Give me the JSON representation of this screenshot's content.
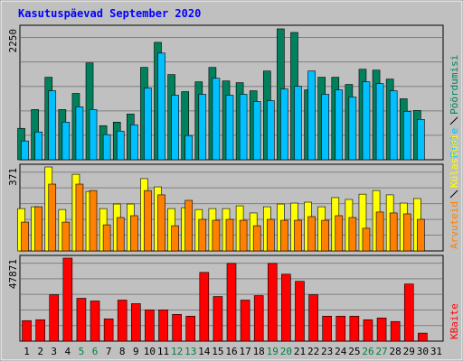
{
  "chart_data": [
    {
      "type": "bar",
      "title": "Kasutuspäevad September 2020",
      "categories": [
        "1",
        "2",
        "3",
        "4",
        "5",
        "6",
        "7",
        "8",
        "9",
        "10",
        "11",
        "12",
        "13",
        "14",
        "15",
        "16",
        "17",
        "18",
        "19",
        "20",
        "21",
        "22",
        "23",
        "24",
        "25",
        "26",
        "27",
        "28",
        "29",
        "30",
        "31"
      ],
      "weekends": [
        "5",
        "6",
        "12",
        "13",
        "19",
        "20",
        "26",
        "27"
      ],
      "weekend_color": "#008040",
      "ylim": [
        0,
        2250
      ],
      "yticks": [
        2250
      ],
      "series": [
        {
          "name": "Pöördumisi",
          "color": "#00805c",
          "values": [
            532,
            851,
            1399,
            851,
            1125,
            1642,
            578,
            638,
            775,
            1566,
            1991,
            1444,
            1155,
            1322,
            1566,
            1337,
            1307,
            1170,
            1505,
            2220,
            2159,
            1185,
            1399,
            1399,
            1277,
            1535,
            1520,
            1368,
            1034,
            836,
            null
          ]
        },
        {
          "name": "Faile",
          "color": "#00c0ff",
          "values": [
            319,
            471,
            1170,
            638,
            897,
            851,
            426,
            486,
            593,
            1216,
            1809,
            1094,
            410,
            1110,
            1383,
            1094,
            1110,
            988,
            1003,
            1201,
            1246,
            1505,
            1110,
            1185,
            1064,
            1322,
            1292,
            1170,
            821,
            684,
            null
          ]
        }
      ]
    },
    {
      "type": "bar",
      "ylim": [
        0,
        371
      ],
      "yticks": [
        371
      ],
      "series": [
        {
          "name": "Külastusi",
          "color": "#ffff00",
          "values": [
            185,
            193,
            367,
            181,
            335,
            260,
            185,
            205,
            205,
            316,
            280,
            185,
            189,
            181,
            185,
            185,
            197,
            166,
            193,
            205,
            209,
            213,
            193,
            233,
            225,
            248,
            264,
            245,
            209,
            229,
            null
          ]
        },
        {
          "name": "Arvuteid",
          "color": "#ff8000",
          "values": [
            126,
            193,
            292,
            126,
            292,
            264,
            114,
            146,
            154,
            264,
            245,
            110,
            221,
            138,
            134,
            138,
            134,
            110,
            138,
            134,
            134,
            150,
            134,
            154,
            146,
            99,
            170,
            166,
            162,
            138,
            null
          ]
        }
      ]
    },
    {
      "type": "bar",
      "ylim": [
        0,
        47871
      ],
      "yticks": [
        47871
      ],
      "series": [
        {
          "name": "KBaite",
          "color": "#ff0000",
          "values": [
            11713,
            12222,
            26482,
            47361,
            24445,
            22917,
            12731,
            23426,
            21389,
            17824,
            17824,
            15277,
            14259,
            39213,
            25463,
            44305,
            23426,
            25972,
            44305,
            38194,
            34120,
            26482,
            14259,
            14259,
            14259,
            12222,
            13241,
            11204,
            32592,
            4583,
            null
          ]
        }
      ]
    }
  ]
}
